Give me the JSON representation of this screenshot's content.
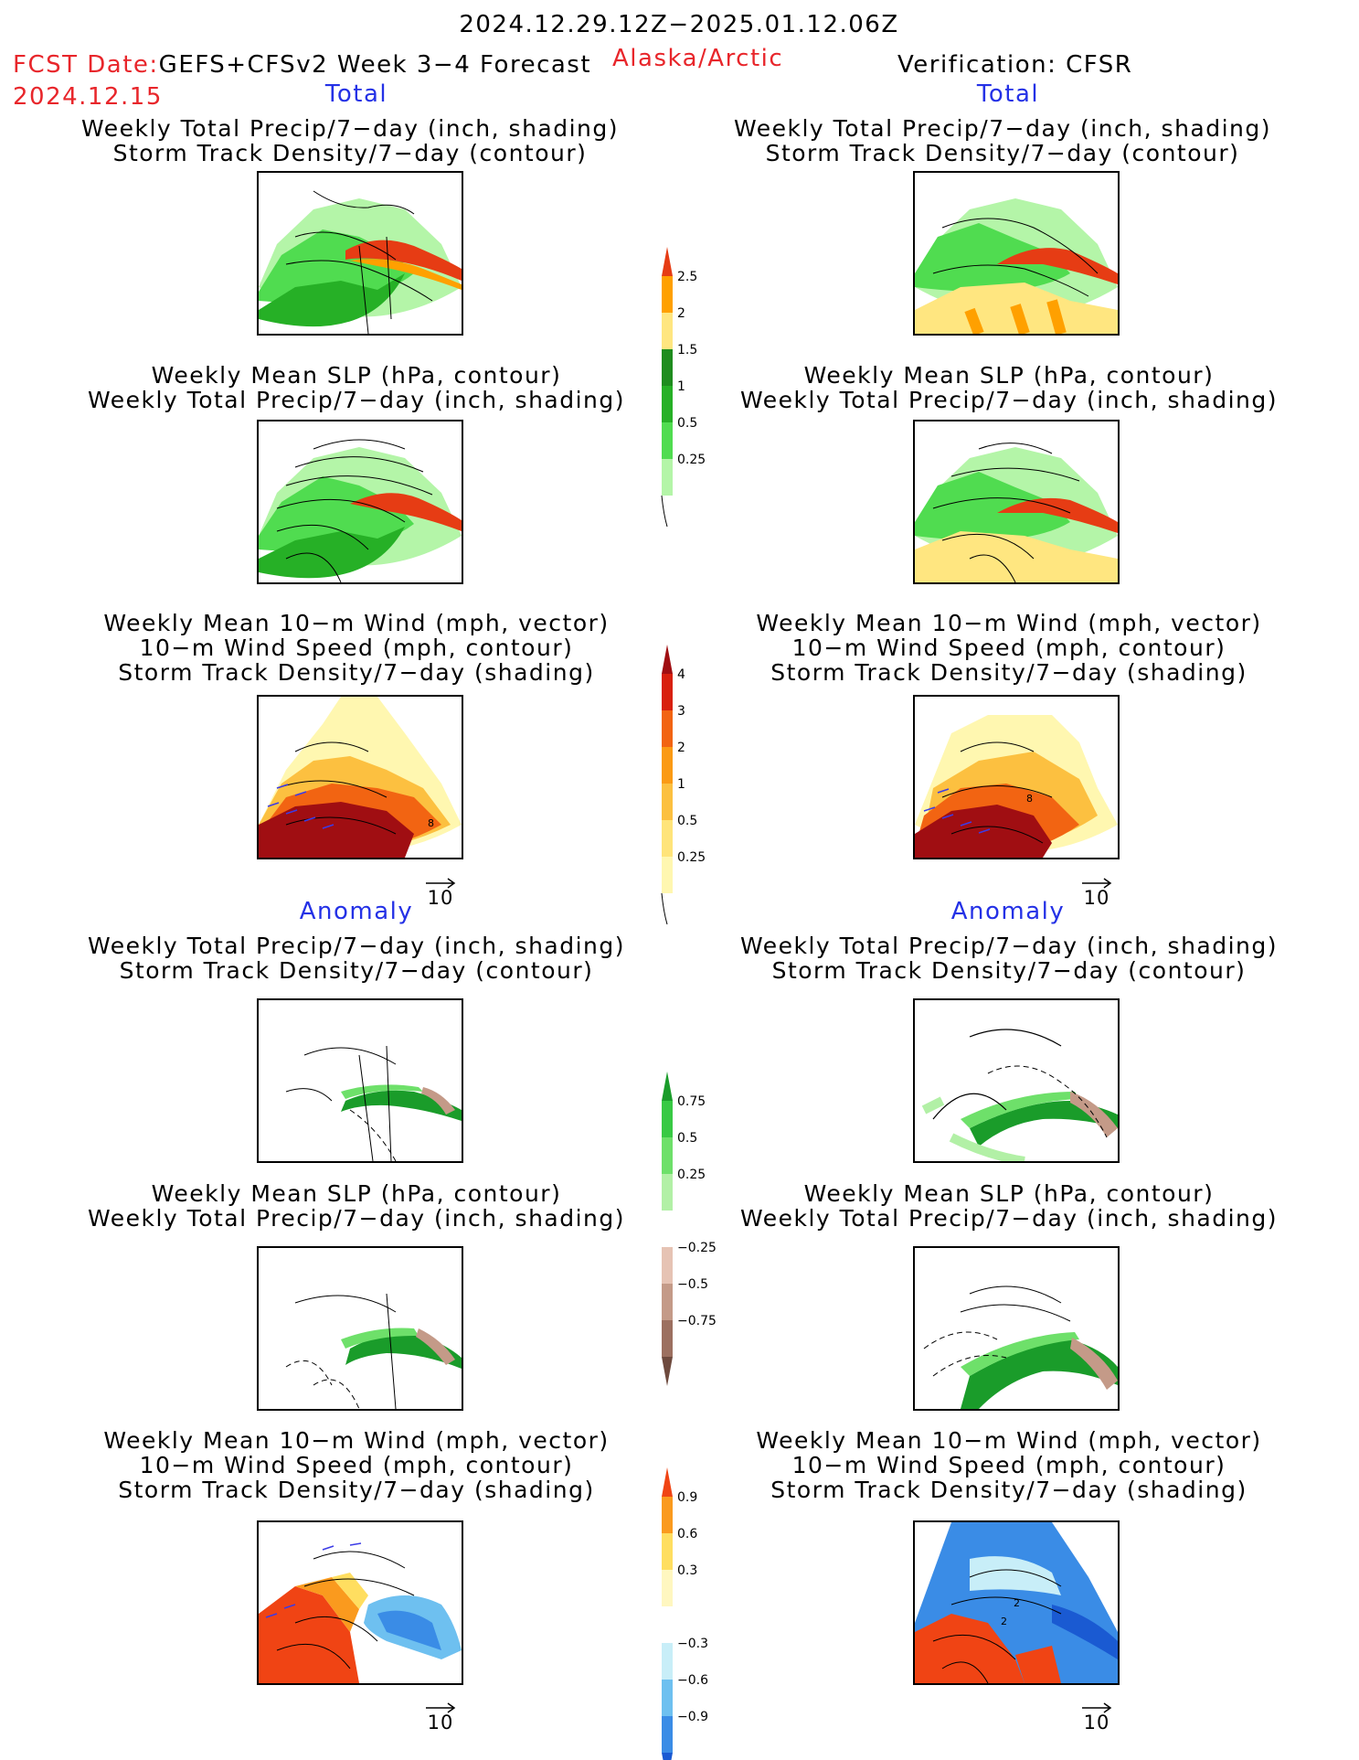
{
  "header": {
    "period": "2024.12.29.12Z−2025.01.12.06Z",
    "fcst_label": "FCST Date:",
    "product": "GEFS+CFSv2 Week 3−4 Forecast",
    "region": "Alaska/Arctic",
    "fcst_date": "2024.12.15",
    "verification": "Verification: CFSR"
  },
  "sections": {
    "total": "Total",
    "anomaly": "Anomaly"
  },
  "titles": {
    "precip_storm": [
      "Weekly Total Precip/7−day (inch, shading)",
      "Storm Track Density/7−day (contour)"
    ],
    "slp_precip": [
      "Weekly Mean SLP (hPa, contour)",
      "Weekly Total Precip/7−day (inch, shading)"
    ],
    "wind_storm": [
      "Weekly Mean 10−m Wind (mph, vector)",
      "10−m Wind Speed (mph, contour)",
      "Storm Track Density/7−day (shading)"
    ]
  },
  "vector_reference": "10",
  "map_fill_labels": {
    "wind_contour_label": "8",
    "storm_anom_label_a": "2",
    "storm_anom_label_b": "2"
  },
  "colorbars": {
    "precip_total": {
      "labels": [
        "0.25",
        "0.5",
        "1",
        "1.5",
        "2",
        "2.5"
      ],
      "colors": [
        "#b4f5a8",
        "#50dc50",
        "#26b026",
        "#1e8c1e",
        "#ffe680",
        "#ffa000",
        "#e63c14"
      ]
    },
    "storm_total": {
      "labels": [
        "0.25",
        "0.5",
        "1",
        "2",
        "3",
        "4"
      ],
      "colors": [
        "#fff7b0",
        "#ffe47a",
        "#fcc040",
        "#fb9a14",
        "#f26412",
        "#d8200e",
        "#a00e12"
      ]
    },
    "precip_anomaly": {
      "labels": [
        "0.75",
        "0.5",
        "0.25",
        "−0.25",
        "−0.5",
        "−0.75"
      ],
      "colors": [
        "#1a9c2a",
        "#38c944",
        "#6ee06a",
        "#b2f0a6",
        "#ffffff",
        "#e6c3b4",
        "#c49a88",
        "#9c7060",
        "#6e4a3e"
      ]
    },
    "storm_anomaly": {
      "labels": [
        "0.9",
        "0.6",
        "0.3",
        "−0.3",
        "−0.6",
        "−0.9"
      ],
      "colors": [
        "#f04414",
        "#fa9a1e",
        "#ffde60",
        "#fff7c0",
        "#ffffff",
        "#c8eef8",
        "#6ec0f0",
        "#3a8ce6",
        "#1a5ad2"
      ]
    }
  }
}
